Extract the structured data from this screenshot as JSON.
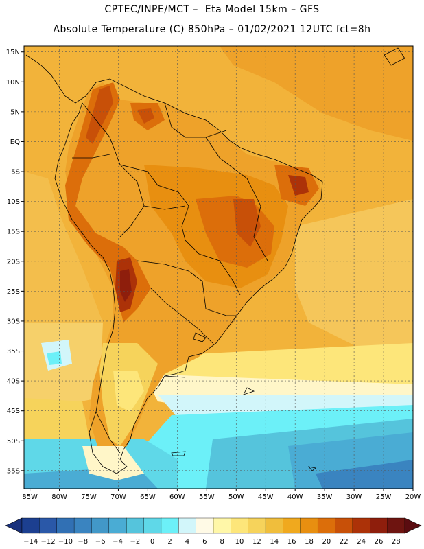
{
  "header": {
    "line1": "CPTEC/INPE/MCT –  Eta Model 15km – GFS",
    "line2": "Absolute Temperature (C) 850hPa – 01/02/2021 12UTC fct=8h"
  },
  "map": {
    "lat_labels": [
      "15N",
      "10N",
      "5N",
      "EQ",
      "5S",
      "10S",
      "15S",
      "20S",
      "25S",
      "30S",
      "35S",
      "40S",
      "45S",
      "50S",
      "55S"
    ],
    "lat_values": [
      15,
      10,
      5,
      0,
      -5,
      -10,
      -15,
      -20,
      -25,
      -30,
      -35,
      -40,
      -45,
      -50,
      -55
    ],
    "lon_labels": [
      "85W",
      "80W",
      "75W",
      "70W",
      "65W",
      "60W",
      "55W",
      "50W",
      "45W",
      "40W",
      "35W",
      "30W",
      "25W",
      "20W"
    ],
    "lon_values": [
      -85,
      -80,
      -75,
      -70,
      -65,
      -60,
      -55,
      -50,
      -45,
      -40,
      -35,
      -30,
      -25,
      -20
    ],
    "extent": {
      "lon_min": -86,
      "lon_max": -20,
      "lat_min": -58,
      "lat_max": 16
    }
  },
  "legend": {
    "labels": [
      "-14",
      "-12",
      "-10",
      "-8",
      "-6",
      "-4",
      "-2",
      "0",
      "2",
      "4",
      "6",
      "8",
      "10",
      "12",
      "14",
      "16",
      "18",
      "20",
      "22",
      "24",
      "26",
      "28"
    ],
    "colors": [
      "#1c3f90",
      "#2a58a8",
      "#3170b4",
      "#3a84c0",
      "#4298c8",
      "#4aacd4",
      "#55c4dc",
      "#5fd8e8",
      "#6cf0f8",
      "#d2f6fa",
      "#fffae6",
      "#fff7a8",
      "#fde67a",
      "#f6d35b",
      "#f0be3c",
      "#f0a91e",
      "#e88f10",
      "#dc6e0a",
      "#c85008",
      "#ac3208",
      "#8e1e0c",
      "#6e1410"
    ],
    "low_color": "#18307c",
    "high_color": "#5a0c10"
  }
}
